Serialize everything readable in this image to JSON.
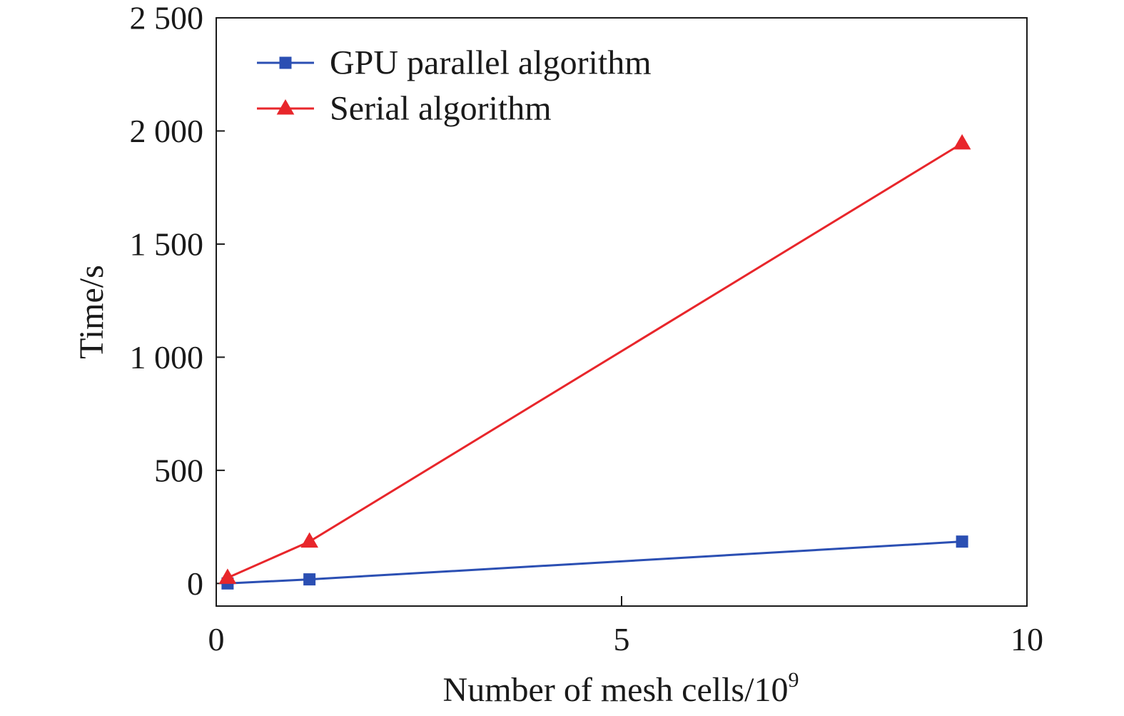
{
  "chart_data": {
    "type": "line",
    "title": "",
    "xlabel": "Number of mesh cells/10",
    "xlabel_superscript": "9",
    "ylabel": "Time/s",
    "xlim": [
      0,
      10
    ],
    "ylim": [
      -100,
      2500
    ],
    "x_ticks": [
      0,
      5,
      10
    ],
    "x_tick_labels": [
      "0",
      "5",
      "10"
    ],
    "y_ticks": [
      0,
      500,
      1000,
      1500,
      2000,
      2500
    ],
    "y_tick_labels": [
      "0",
      "500",
      "1 000",
      "1 500",
      "2 000",
      "2 500"
    ],
    "grid": false,
    "legend_position": "top-left",
    "series": [
      {
        "name": "GPU parallel algorithm",
        "color": "#2b4fb3",
        "marker": "square",
        "x": [
          0.14,
          1.15,
          9.2
        ],
        "y": [
          0,
          18,
          185
        ]
      },
      {
        "name": "Serial algorithm",
        "color": "#e8262b",
        "marker": "triangle",
        "x": [
          0.14,
          1.15,
          9.2
        ],
        "y": [
          25,
          185,
          1945
        ]
      }
    ]
  }
}
